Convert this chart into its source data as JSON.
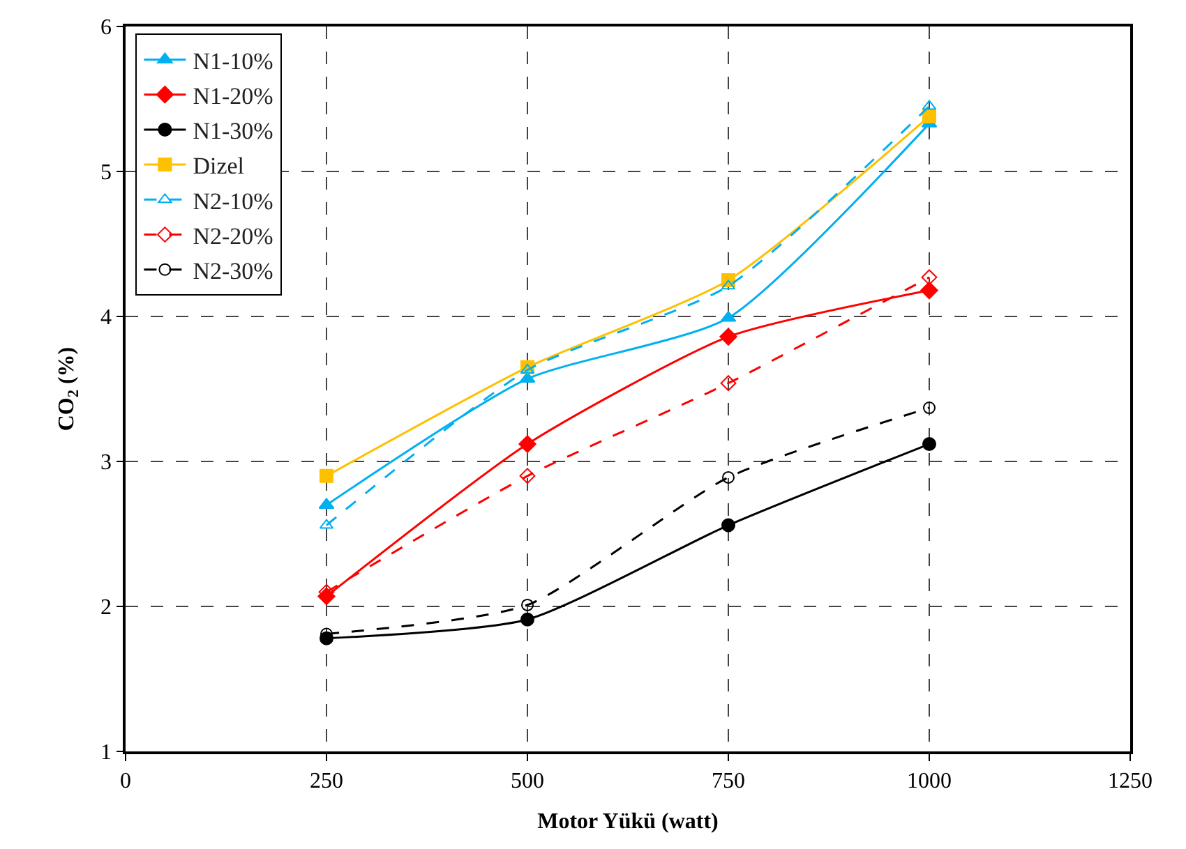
{
  "chart_data": {
    "type": "line",
    "xlabel": "Motor Yükü (watt)",
    "ylabel": "CO$_{2}$ (%)",
    "x": [
      250,
      500,
      750,
      1000
    ],
    "series": [
      {
        "name": "N1-10%",
        "color": "#00b0f0",
        "marker": "triangle",
        "line_style": "solid",
        "values": [
          2.7,
          3.57,
          3.99,
          5.33
        ]
      },
      {
        "name": "N1-20%",
        "color": "#ff0000",
        "marker": "diamond",
        "line_style": "solid",
        "values": [
          2.07,
          3.12,
          3.86,
          4.18
        ]
      },
      {
        "name": "N1-30%",
        "color": "#000000",
        "marker": "circle",
        "line_style": "solid",
        "values": [
          1.78,
          1.91,
          2.56,
          3.12
        ]
      },
      {
        "name": "Dizel",
        "color": "#ffc000",
        "marker": "square",
        "line_style": "solid",
        "values": [
          2.9,
          3.65,
          4.25,
          5.38
        ]
      },
      {
        "name": "N2-10%",
        "color": "#00b0f0",
        "marker": "triangle",
        "line_style": "dashed",
        "values": [
          2.56,
          3.63,
          4.21,
          5.45
        ]
      },
      {
        "name": "N2-20%",
        "color": "#ff0000",
        "marker": "diamond",
        "line_style": "dashed",
        "values": [
          2.1,
          2.9,
          3.54,
          4.27
        ]
      },
      {
        "name": "N2-30%",
        "color": "#000000",
        "marker": "circle",
        "line_style": "dashed",
        "values": [
          1.81,
          2.01,
          2.89,
          3.37
        ]
      }
    ],
    "xlim": [
      0,
      1250
    ],
    "xticks": [
      0,
      250,
      500,
      750,
      1000,
      1250
    ],
    "ylim": [
      1,
      6
    ],
    "yticks": [
      1,
      2,
      3,
      4,
      5,
      6
    ],
    "grid": true,
    "legend": "top left"
  }
}
